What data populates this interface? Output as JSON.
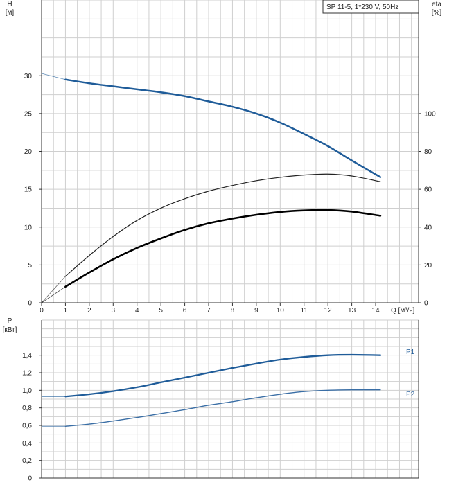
{
  "chart_data": [
    {
      "type": "line",
      "title": "SP 11-5, 1*230 V, 50Hz",
      "xlabel": "Q [м³/ч]",
      "ylabel": "H\n[м]",
      "y2label": "eta\n[%]",
      "xlim": [
        0,
        15.8
      ],
      "ylim": [
        0,
        40
      ],
      "y2lim": [
        0,
        160
      ],
      "x_ticks": [
        0,
        1,
        2,
        3,
        4,
        5,
        6,
        7,
        8,
        9,
        10,
        11,
        12,
        13,
        14
      ],
      "y_ticks": [
        0,
        5,
        10,
        15,
        20,
        25,
        30
      ],
      "y2_ticks": [
        0,
        20,
        40,
        60,
        80,
        100
      ],
      "grid": true,
      "series": [
        {
          "name": "",
          "axis": "left",
          "color": "#1f5c99",
          "x": [
            1,
            2,
            3,
            4,
            5,
            6,
            7,
            8,
            9,
            10,
            11,
            12,
            13,
            14.2
          ],
          "values": [
            29.5,
            29.0,
            28.6,
            28.2,
            27.8,
            27.3,
            26.6,
            25.9,
            25.0,
            23.8,
            22.3,
            20.7,
            18.8,
            16.6
          ],
          "extension": {
            "x": [
              0,
              1
            ],
            "values": [
              30.3,
              29.5
            ]
          }
        },
        {
          "name": "",
          "axis": "right",
          "color": "#222222",
          "x": [
            1,
            2,
            3,
            4,
            5,
            6,
            7,
            8,
            9,
            10,
            11,
            12,
            13,
            14.2
          ],
          "values": [
            14,
            25,
            35,
            43.5,
            50,
            55,
            59,
            62,
            64.5,
            66.3,
            67.5,
            68,
            67,
            64
          ],
          "extension": {
            "x": [
              0,
              1
            ],
            "values": [
              0,
              14
            ]
          }
        },
        {
          "name": "",
          "axis": "right",
          "color": "#000000",
          "x": [
            1,
            2,
            3,
            4,
            5,
            6,
            7,
            8,
            9,
            10,
            11,
            12,
            13,
            14.2
          ],
          "values": [
            8.5,
            16,
            23,
            29,
            34,
            38.5,
            42,
            44.5,
            46.5,
            48,
            48.8,
            49,
            48.2,
            46
          ],
          "extension": {
            "x": [
              0,
              1
            ],
            "values": [
              0,
              8.5
            ]
          }
        }
      ]
    },
    {
      "type": "line",
      "title": "",
      "xlabel": "",
      "ylabel": "P\n[кВт]",
      "xlim": [
        0,
        15.8
      ],
      "ylim": [
        0,
        1.8
      ],
      "y_ticks": [
        0,
        0.2,
        0.4,
        0.6,
        0.8,
        1.0,
        1.2,
        1.4
      ],
      "y_tick_labels": [
        "0",
        "0,2",
        "0,4",
        "0,6",
        "0,8",
        "1,0",
        "1,2",
        "1,4"
      ],
      "grid": true,
      "series": [
        {
          "name": "P1",
          "color": "#1f5c99",
          "x": [
            1,
            2,
            3,
            4,
            5,
            6,
            7,
            8,
            9,
            10,
            11,
            12,
            13,
            14.2
          ],
          "values": [
            0.93,
            0.955,
            0.99,
            1.035,
            1.09,
            1.145,
            1.2,
            1.255,
            1.305,
            1.35,
            1.38,
            1.4,
            1.405,
            1.4
          ],
          "extension": {
            "x": [
              0,
              1
            ],
            "values": [
              0.93,
              0.93
            ]
          }
        },
        {
          "name": "P2",
          "color": "#3a6ea5",
          "x": [
            1,
            2,
            3,
            4,
            5,
            6,
            7,
            8,
            9,
            10,
            11,
            12,
            13,
            14.2
          ],
          "values": [
            0.59,
            0.615,
            0.65,
            0.69,
            0.735,
            0.78,
            0.83,
            0.87,
            0.915,
            0.955,
            0.985,
            1.0,
            1.005,
            1.005
          ],
          "extension": {
            "x": [
              0,
              1
            ],
            "values": [
              0.59,
              0.59
            ]
          }
        }
      ]
    }
  ]
}
